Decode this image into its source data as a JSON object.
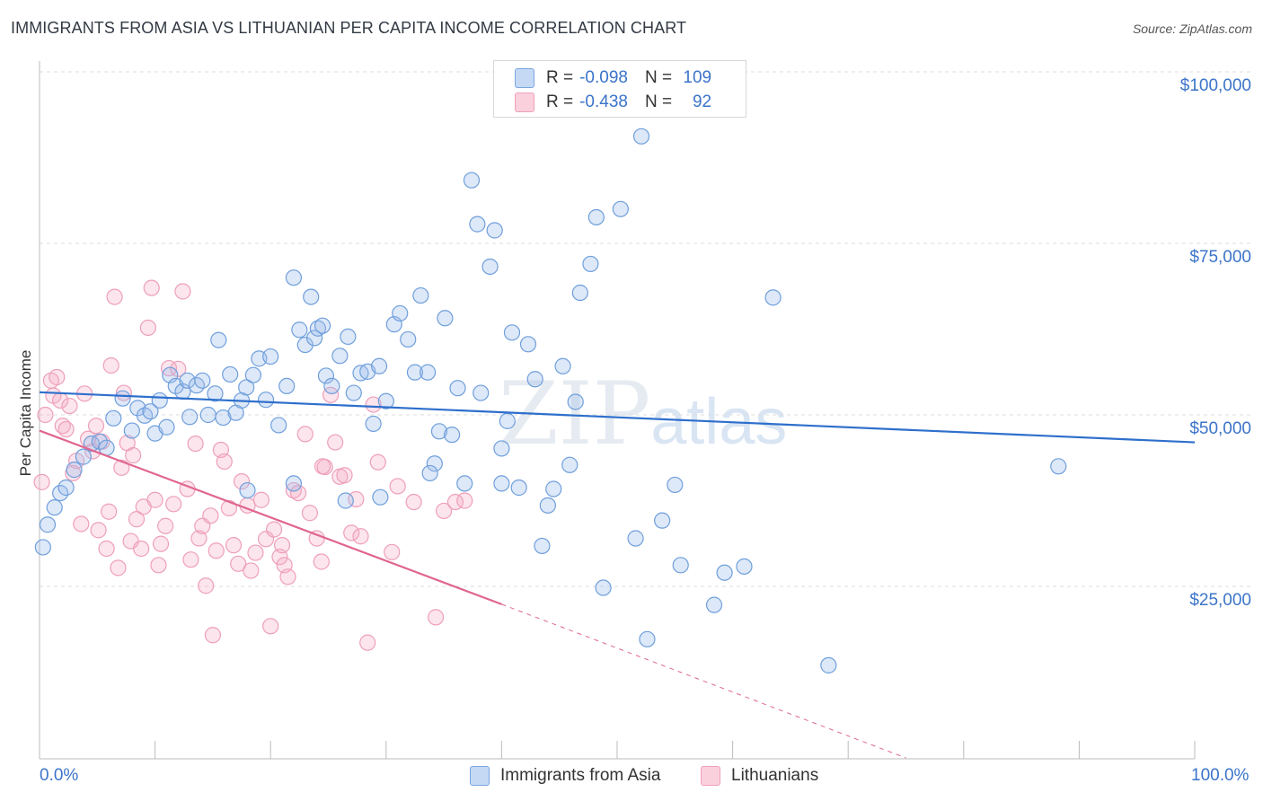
{
  "header": {
    "title": "IMMIGRANTS FROM ASIA VS LITHUANIAN PER CAPITA INCOME CORRELATION CHART",
    "source": "Source: ZipAtlas.com"
  },
  "watermark": {
    "zip": "ZIP",
    "atlas": "atlas"
  },
  "legend": {
    "rows": [
      {
        "r_label": "R =",
        "r_value": "-0.098",
        "n_label": "N =",
        "n_value": "109",
        "color": "#a9c6ef"
      },
      {
        "r_label": "R =",
        "r_value": "-0.438",
        "n_label": "N =",
        "n_value": "92",
        "color": "#f6b7cb"
      }
    ]
  },
  "bottom_legend": {
    "items": [
      {
        "label": "Immigrants from Asia",
        "color": "#a9c6ef"
      },
      {
        "label": "Lithuanians",
        "color": "#f6b7cb"
      }
    ]
  },
  "colors": {
    "blue_fill": "rgba(158,190,236,0.35)",
    "blue_stroke": "#6f9fdc",
    "blue_line": "#2e6fcc",
    "pink_fill": "rgba(245,170,195,0.30)",
    "pink_stroke": "#ee9fb9",
    "pink_line": "#e0668f",
    "tick_text": "#3b74c9",
    "grid": "#dcdcdc"
  },
  "chart_data": {
    "type": "scatter",
    "title": "IMMIGRANTS FROM ASIA VS LITHUANIAN PER CAPITA INCOME CORRELATION CHART",
    "xlabel": "",
    "ylabel": "Per Capita Income",
    "xlim": [
      0,
      100
    ],
    "ylim": [
      0,
      105000
    ],
    "x_tick_labels": [
      "0.0%",
      "100.0%"
    ],
    "y_ticks": [
      25000,
      50000,
      75000,
      100000
    ],
    "y_tick_labels": [
      "$25,000",
      "$50,000",
      "$75,000",
      "$100,000"
    ],
    "grid": "horizontal dashed",
    "legend_position": "top-center",
    "series": [
      {
        "name": "Immigrants from Asia",
        "r": -0.098,
        "n": 109,
        "trend": {
          "x": [
            0,
            100
          ],
          "y": [
            53300,
            46000
          ]
        },
        "points": [
          [
            0.3,
            30700
          ],
          [
            0.7,
            34000
          ],
          [
            1.3,
            36500
          ],
          [
            1.8,
            38600
          ],
          [
            2.3,
            39400
          ],
          [
            3.0,
            42000
          ],
          [
            3.8,
            43900
          ],
          [
            4.5,
            45800
          ],
          [
            5.2,
            46100
          ],
          [
            5.8,
            45200
          ],
          [
            6.4,
            49500
          ],
          [
            7.2,
            52400
          ],
          [
            8.0,
            47700
          ],
          [
            8.5,
            51000
          ],
          [
            9.1,
            49900
          ],
          [
            9.6,
            50500
          ],
          [
            10.0,
            47300
          ],
          [
            10.4,
            52100
          ],
          [
            11.0,
            48200
          ],
          [
            11.3,
            55800
          ],
          [
            11.8,
            54200
          ],
          [
            12.4,
            53400
          ],
          [
            12.8,
            55000
          ],
          [
            13.0,
            49700
          ],
          [
            13.6,
            54300
          ],
          [
            14.1,
            55000
          ],
          [
            14.6,
            50000
          ],
          [
            15.2,
            53100
          ],
          [
            15.5,
            60900
          ],
          [
            15.9,
            49600
          ],
          [
            16.5,
            55900
          ],
          [
            17.0,
            50300
          ],
          [
            17.5,
            52100
          ],
          [
            17.9,
            54000
          ],
          [
            18.5,
            55800
          ],
          [
            19.0,
            58200
          ],
          [
            19.6,
            52200
          ],
          [
            20.0,
            58500
          ],
          [
            20.7,
            48500
          ],
          [
            21.4,
            54200
          ],
          [
            22.0,
            70000
          ],
          [
            22.5,
            62400
          ],
          [
            23.0,
            60200
          ],
          [
            23.5,
            67200
          ],
          [
            23.8,
            61200
          ],
          [
            24.1,
            62600
          ],
          [
            24.5,
            63000
          ],
          [
            24.8,
            55700
          ],
          [
            25.3,
            54200
          ],
          [
            26.0,
            58600
          ],
          [
            26.7,
            61400
          ],
          [
            27.2,
            53200
          ],
          [
            27.8,
            56100
          ],
          [
            28.4,
            56300
          ],
          [
            28.9,
            48700
          ],
          [
            29.4,
            57100
          ],
          [
            30.0,
            52000
          ],
          [
            30.7,
            63200
          ],
          [
            31.2,
            64800
          ],
          [
            31.9,
            61000
          ],
          [
            32.5,
            56200
          ],
          [
            33.0,
            67400
          ],
          [
            33.6,
            56200
          ],
          [
            34.2,
            42900
          ],
          [
            34.6,
            47600
          ],
          [
            35.1,
            64100
          ],
          [
            35.7,
            47100
          ],
          [
            36.2,
            53900
          ],
          [
            36.8,
            40000
          ],
          [
            37.4,
            84200
          ],
          [
            37.9,
            77800
          ],
          [
            38.2,
            53200
          ],
          [
            39.0,
            71600
          ],
          [
            39.4,
            76900
          ],
          [
            40.0,
            45100
          ],
          [
            40.5,
            49100
          ],
          [
            40.9,
            62000
          ],
          [
            41.5,
            39400
          ],
          [
            42.3,
            60300
          ],
          [
            42.9,
            55200
          ],
          [
            43.5,
            30900
          ],
          [
            44.0,
            36800
          ],
          [
            44.5,
            39200
          ],
          [
            45.3,
            57100
          ],
          [
            45.9,
            42700
          ],
          [
            46.4,
            51900
          ],
          [
            46.8,
            67800
          ],
          [
            47.7,
            72000
          ],
          [
            48.2,
            78800
          ],
          [
            48.8,
            24800
          ],
          [
            50.3,
            80000
          ],
          [
            51.6,
            32000
          ],
          [
            52.1,
            90600
          ],
          [
            52.6,
            17300
          ],
          [
            53.9,
            34600
          ],
          [
            55.0,
            39800
          ],
          [
            55.5,
            28100
          ],
          [
            58.4,
            22300
          ],
          [
            59.3,
            27000
          ],
          [
            61.0,
            27900
          ],
          [
            63.5,
            67100
          ],
          [
            68.3,
            13500
          ],
          [
            88.2,
            42500
          ],
          [
            40.0,
            40000
          ],
          [
            33.8,
            41500
          ],
          [
            29.5,
            38000
          ],
          [
            26.5,
            37500
          ],
          [
            22.0,
            40000
          ],
          [
            18.0,
            39000
          ]
        ]
      },
      {
        "name": "Lithuanians",
        "r": -0.438,
        "n": 92,
        "trend": {
          "x": [
            0,
            40
          ],
          "y": [
            47700,
            22400
          ]
        },
        "trend_dashed_extension": {
          "x": [
            40,
            75
          ],
          "y": [
            22400,
            0
          ]
        },
        "points": [
          [
            0.2,
            40200
          ],
          [
            0.5,
            50000
          ],
          [
            1.0,
            55000
          ],
          [
            1.2,
            52800
          ],
          [
            1.5,
            55500
          ],
          [
            1.8,
            52100
          ],
          [
            2.0,
            48400
          ],
          [
            2.3,
            47900
          ],
          [
            2.6,
            51300
          ],
          [
            2.9,
            41500
          ],
          [
            3.2,
            43300
          ],
          [
            3.6,
            34100
          ],
          [
            3.9,
            53100
          ],
          [
            4.2,
            46500
          ],
          [
            4.6,
            44700
          ],
          [
            4.9,
            48400
          ],
          [
            5.1,
            33200
          ],
          [
            5.4,
            46100
          ],
          [
            5.8,
            30500
          ],
          [
            6.0,
            35900
          ],
          [
            6.2,
            57200
          ],
          [
            6.5,
            67200
          ],
          [
            6.8,
            27700
          ],
          [
            7.1,
            42300
          ],
          [
            7.3,
            53200
          ],
          [
            7.6,
            45900
          ],
          [
            7.9,
            31600
          ],
          [
            8.1,
            44100
          ],
          [
            8.4,
            34800
          ],
          [
            8.8,
            30500
          ],
          [
            9.0,
            36600
          ],
          [
            9.4,
            62700
          ],
          [
            9.7,
            68500
          ],
          [
            10.0,
            37600
          ],
          [
            10.3,
            28100
          ],
          [
            10.5,
            31200
          ],
          [
            10.9,
            33800
          ],
          [
            11.2,
            56800
          ],
          [
            11.6,
            37000
          ],
          [
            12.0,
            56700
          ],
          [
            12.4,
            68000
          ],
          [
            12.8,
            39200
          ],
          [
            13.1,
            28900
          ],
          [
            13.5,
            45800
          ],
          [
            13.8,
            32000
          ],
          [
            14.1,
            33800
          ],
          [
            14.4,
            25100
          ],
          [
            14.8,
            35300
          ],
          [
            15.0,
            17900
          ],
          [
            15.3,
            30200
          ],
          [
            15.7,
            44900
          ],
          [
            16.0,
            43200
          ],
          [
            16.4,
            36400
          ],
          [
            16.8,
            31000
          ],
          [
            17.2,
            28300
          ],
          [
            17.5,
            40300
          ],
          [
            18.0,
            36800
          ],
          [
            18.3,
            27300
          ],
          [
            18.7,
            29900
          ],
          [
            19.2,
            37600
          ],
          [
            19.6,
            31900
          ],
          [
            20.0,
            19200
          ],
          [
            20.3,
            33300
          ],
          [
            20.8,
            29300
          ],
          [
            21.2,
            28100
          ],
          [
            21.5,
            26400
          ],
          [
            22.0,
            39000
          ],
          [
            22.4,
            38600
          ],
          [
            23.0,
            47200
          ],
          [
            23.4,
            35700
          ],
          [
            24.0,
            32000
          ],
          [
            24.4,
            28600
          ],
          [
            24.7,
            42400
          ],
          [
            25.2,
            52900
          ],
          [
            25.6,
            46000
          ],
          [
            26.0,
            41000
          ],
          [
            26.4,
            41200
          ],
          [
            27.0,
            32800
          ],
          [
            27.4,
            37700
          ],
          [
            27.8,
            32300
          ],
          [
            28.4,
            16800
          ],
          [
            28.9,
            51500
          ],
          [
            29.3,
            43100
          ],
          [
            30.5,
            30000
          ],
          [
            31.0,
            39600
          ],
          [
            32.4,
            37300
          ],
          [
            34.3,
            20500
          ],
          [
            35.0,
            36000
          ],
          [
            36.0,
            37300
          ],
          [
            36.8,
            37500
          ],
          [
            24.5,
            42500
          ],
          [
            21.0,
            31000
          ]
        ]
      }
    ]
  }
}
